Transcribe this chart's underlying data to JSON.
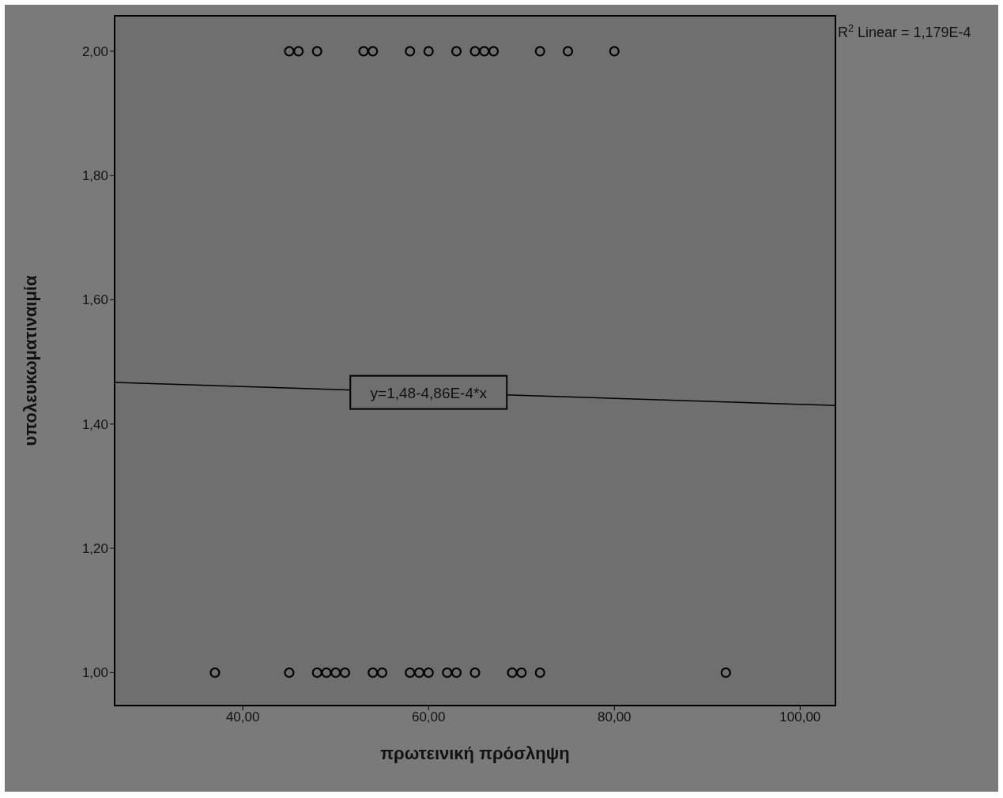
{
  "chart_data": {
    "type": "scatter",
    "xlabel": "πρωτεινική πρόσληψη",
    "ylabel": "υπολευκωματιναιμία",
    "xlim": [
      26.2,
      103.8
    ],
    "xticks": [
      {
        "value": 40,
        "label": "40,00"
      },
      {
        "value": 60,
        "label": "60,00"
      },
      {
        "value": 80,
        "label": "80,00"
      },
      {
        "value": 100,
        "label": "100,00"
      }
    ],
    "ylim": [
      0.947,
      2.057
    ],
    "yticks": [
      {
        "value": 1,
        "label": "1,00"
      },
      {
        "value": 1.2,
        "label": "1,20"
      },
      {
        "value": 1.4,
        "label": "1,40"
      },
      {
        "value": 1.6,
        "label": "1,60"
      },
      {
        "value": 1.8,
        "label": "1,80"
      },
      {
        "value": 2,
        "label": "2,00"
      }
    ],
    "series": [
      {
        "marker": "circle",
        "color": "#000000",
        "x": [
          45,
          46,
          48,
          53,
          54,
          58,
          60,
          63,
          65,
          66,
          67,
          72,
          75,
          80,
          37,
          45,
          48,
          49,
          50,
          51,
          54,
          55,
          58,
          59,
          60,
          62,
          63,
          65,
          69,
          70,
          72,
          92
        ],
        "values": [
          2,
          2,
          2,
          2,
          2,
          2,
          2,
          2,
          2,
          2,
          2,
          2,
          2,
          2,
          1,
          1,
          1,
          1,
          1,
          1,
          1,
          1,
          1,
          1,
          1,
          1,
          1,
          1,
          1,
          1,
          1,
          1
        ]
      },
      {
        "type": "line",
        "color": "#000000",
        "x": [
          26.2,
          103.8
        ],
        "values": [
          1.467,
          1.43
        ]
      }
    ],
    "annotations": [
      {
        "text": "y=1,48-4,86E-4*x",
        "x": 60,
        "y": 1.451
      },
      "R$^{2}$ Linear = 1,179E-4"
    ]
  }
}
